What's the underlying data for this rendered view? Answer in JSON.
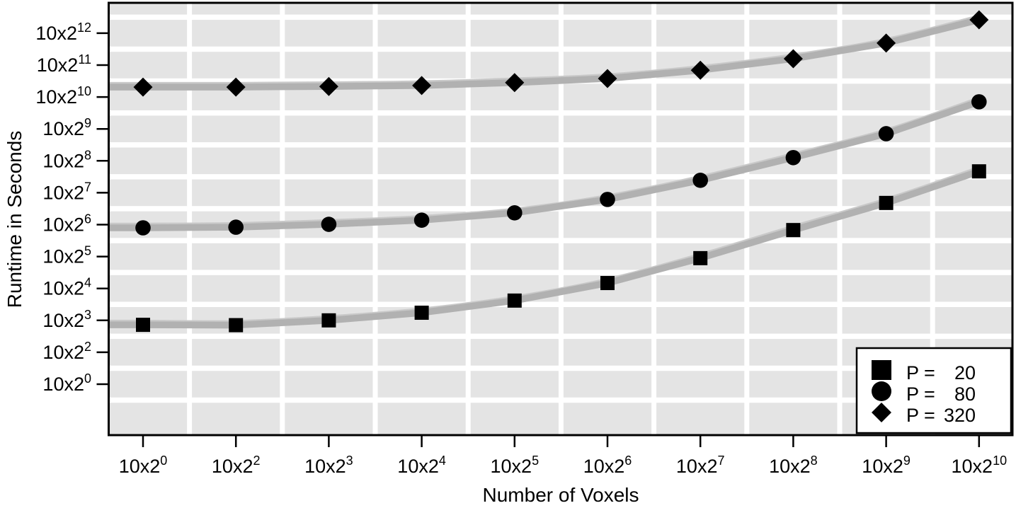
{
  "chart_data": {
    "type": "line",
    "title": "",
    "xlabel": "Number of Voxels",
    "ylabel": "Runtime in Seconds",
    "x_tick_labels": [
      "10x2^0",
      "10x2^2",
      "10x2^3",
      "10x2^4",
      "10x2^5",
      "10x2^6",
      "10x2^7",
      "10x2^8",
      "10x2^9",
      "10x2^10"
    ],
    "y_tick_labels": [
      "10x2^0",
      "10x2^2",
      "10x2^3",
      "10x2^4",
      "10x2^5",
      "10x2^6",
      "10x2^7",
      "10x2^8",
      "10x2^9",
      "10x2^10",
      "10x2^11",
      "10x2^12"
    ],
    "axis_note": "Both axes use 10x2^e labels on equally spaced ticks; exponent 1 is skipped on both axes",
    "values_unit": "values_exp = exponent e of the y-axis label scale 10x2^e (seconds), read off the chart",
    "series": [
      {
        "label_prefix": "P =",
        "label_value": "20",
        "marker": "square",
        "values_exp": [
          2.86,
          2.85,
          3.0,
          3.24,
          3.62,
          4.17,
          4.95,
          5.83,
          6.68,
          7.67
        ]
      },
      {
        "label_prefix": "P =",
        "label_value": "80",
        "marker": "circle",
        "values_exp": [
          5.9,
          5.92,
          6.01,
          6.14,
          6.37,
          6.79,
          7.39,
          8.1,
          8.85,
          9.85
        ]
      },
      {
        "label_prefix": "P =",
        "label_value": "320",
        "marker": "diamond",
        "values_exp": [
          10.31,
          10.31,
          10.33,
          10.36,
          10.45,
          10.58,
          10.84,
          11.2,
          11.69,
          12.42
        ]
      }
    ],
    "legend_position": "bottom-right",
    "grid": "thick white gridlines on gray panel, placed midway between ticks"
  },
  "colors": {
    "background": "#ffffff",
    "panel_bg": "#e4e4e4",
    "gridline": "#ffffff",
    "line_dark": "#b1b1b1",
    "line_light": "#c9c9c9",
    "marker": "#000000",
    "border": "#000000",
    "text": "#000000",
    "legend_bg": "#ffffff"
  }
}
